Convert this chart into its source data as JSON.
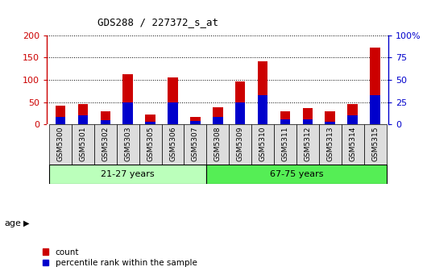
{
  "title": "GDS288 / 227372_s_at",
  "samples": [
    "GSM5300",
    "GSM5301",
    "GSM5302",
    "GSM5303",
    "GSM5305",
    "GSM5306",
    "GSM5307",
    "GSM5308",
    "GSM5309",
    "GSM5310",
    "GSM5311",
    "GSM5312",
    "GSM5313",
    "GSM5314",
    "GSM5315"
  ],
  "count_values": [
    42,
    46,
    30,
    112,
    22,
    106,
    17,
    38,
    97,
    142,
    30,
    37,
    30,
    46,
    172
  ],
  "percentile_values": [
    8,
    10,
    5,
    25,
    3,
    25,
    4,
    8,
    25,
    33,
    6,
    6,
    3,
    10,
    33
  ],
  "group1_label": "21-27 years",
  "group1_count": 7,
  "group2_label": "67-75 years",
  "group2_count": 8,
  "age_label": "age",
  "left_ylim": [
    0,
    200
  ],
  "right_ylim": [
    0,
    100
  ],
  "left_yticks": [
    0,
    50,
    100,
    150,
    200
  ],
  "right_yticks": [
    0,
    25,
    50,
    75,
    100
  ],
  "right_yticklabels": [
    "0",
    "25",
    "50",
    "75",
    "100%"
  ],
  "bar_color_red": "#cc0000",
  "bar_color_blue": "#0000cc",
  "group1_color": "#bbffbb",
  "group2_color": "#55ee55",
  "plot_bg_color": "#ffffff",
  "xticklabel_bg": "#dddddd",
  "legend_count_label": "count",
  "legend_percentile_label": "percentile rank within the sample",
  "bar_width": 0.45,
  "title_fontsize": 9
}
